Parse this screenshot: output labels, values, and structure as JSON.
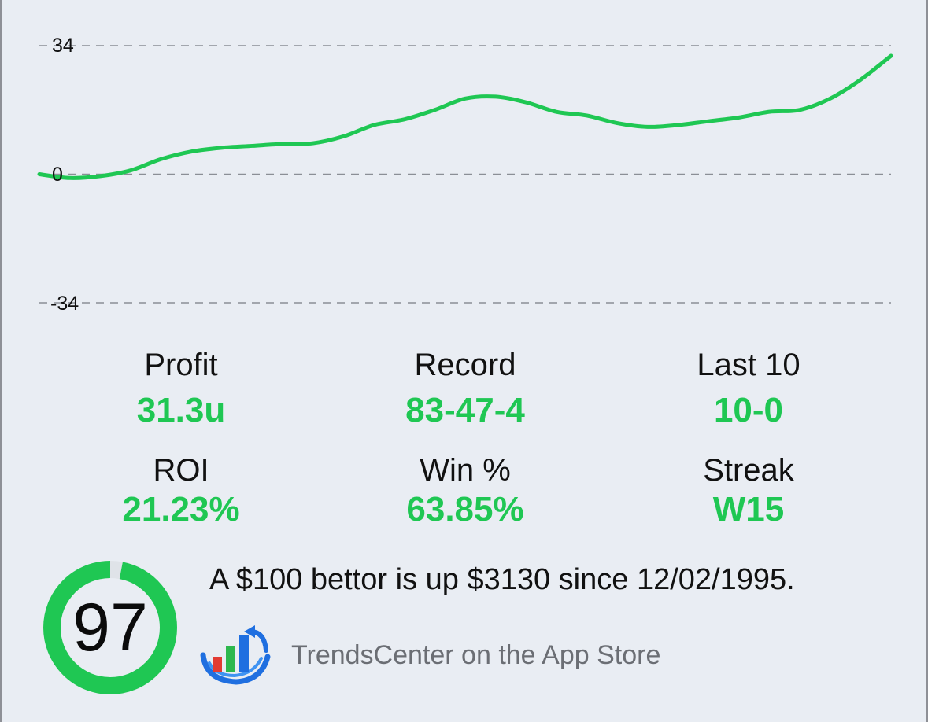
{
  "chart_data": {
    "type": "line",
    "ylim": [
      -34,
      34
    ],
    "ytick_labels": [
      "34",
      "0",
      "-34"
    ],
    "grid": true,
    "series": [
      {
        "color": "#1fc753",
        "values": [
          0,
          -1,
          -0.5,
          1,
          4,
          6,
          7,
          7.5,
          8,
          8.2,
          10,
          13,
          14.5,
          17,
          20,
          20.5,
          19,
          16.5,
          15.5,
          13.5,
          12.5,
          13,
          14,
          15,
          16.5,
          17,
          20,
          25,
          31.3
        ]
      }
    ]
  },
  "stats": [
    {
      "label": "Profit",
      "value": "31.3u"
    },
    {
      "label": "Record",
      "value": "83-47-4"
    },
    {
      "label": "Last 10",
      "value": "10-0"
    },
    {
      "label": "ROI",
      "value": "21.23%"
    },
    {
      "label": "Win %",
      "value": "63.85%"
    },
    {
      "label": "Streak",
      "value": "W15"
    }
  ],
  "score": {
    "value": "97",
    "fraction": 0.97,
    "color": "#1fc753"
  },
  "summary_text": "A $100 bettor is up $3130 since 12/02/1995.",
  "promo": {
    "icon": "trendscenter-logo-icon",
    "text": "TrendsCenter on the App Store"
  }
}
